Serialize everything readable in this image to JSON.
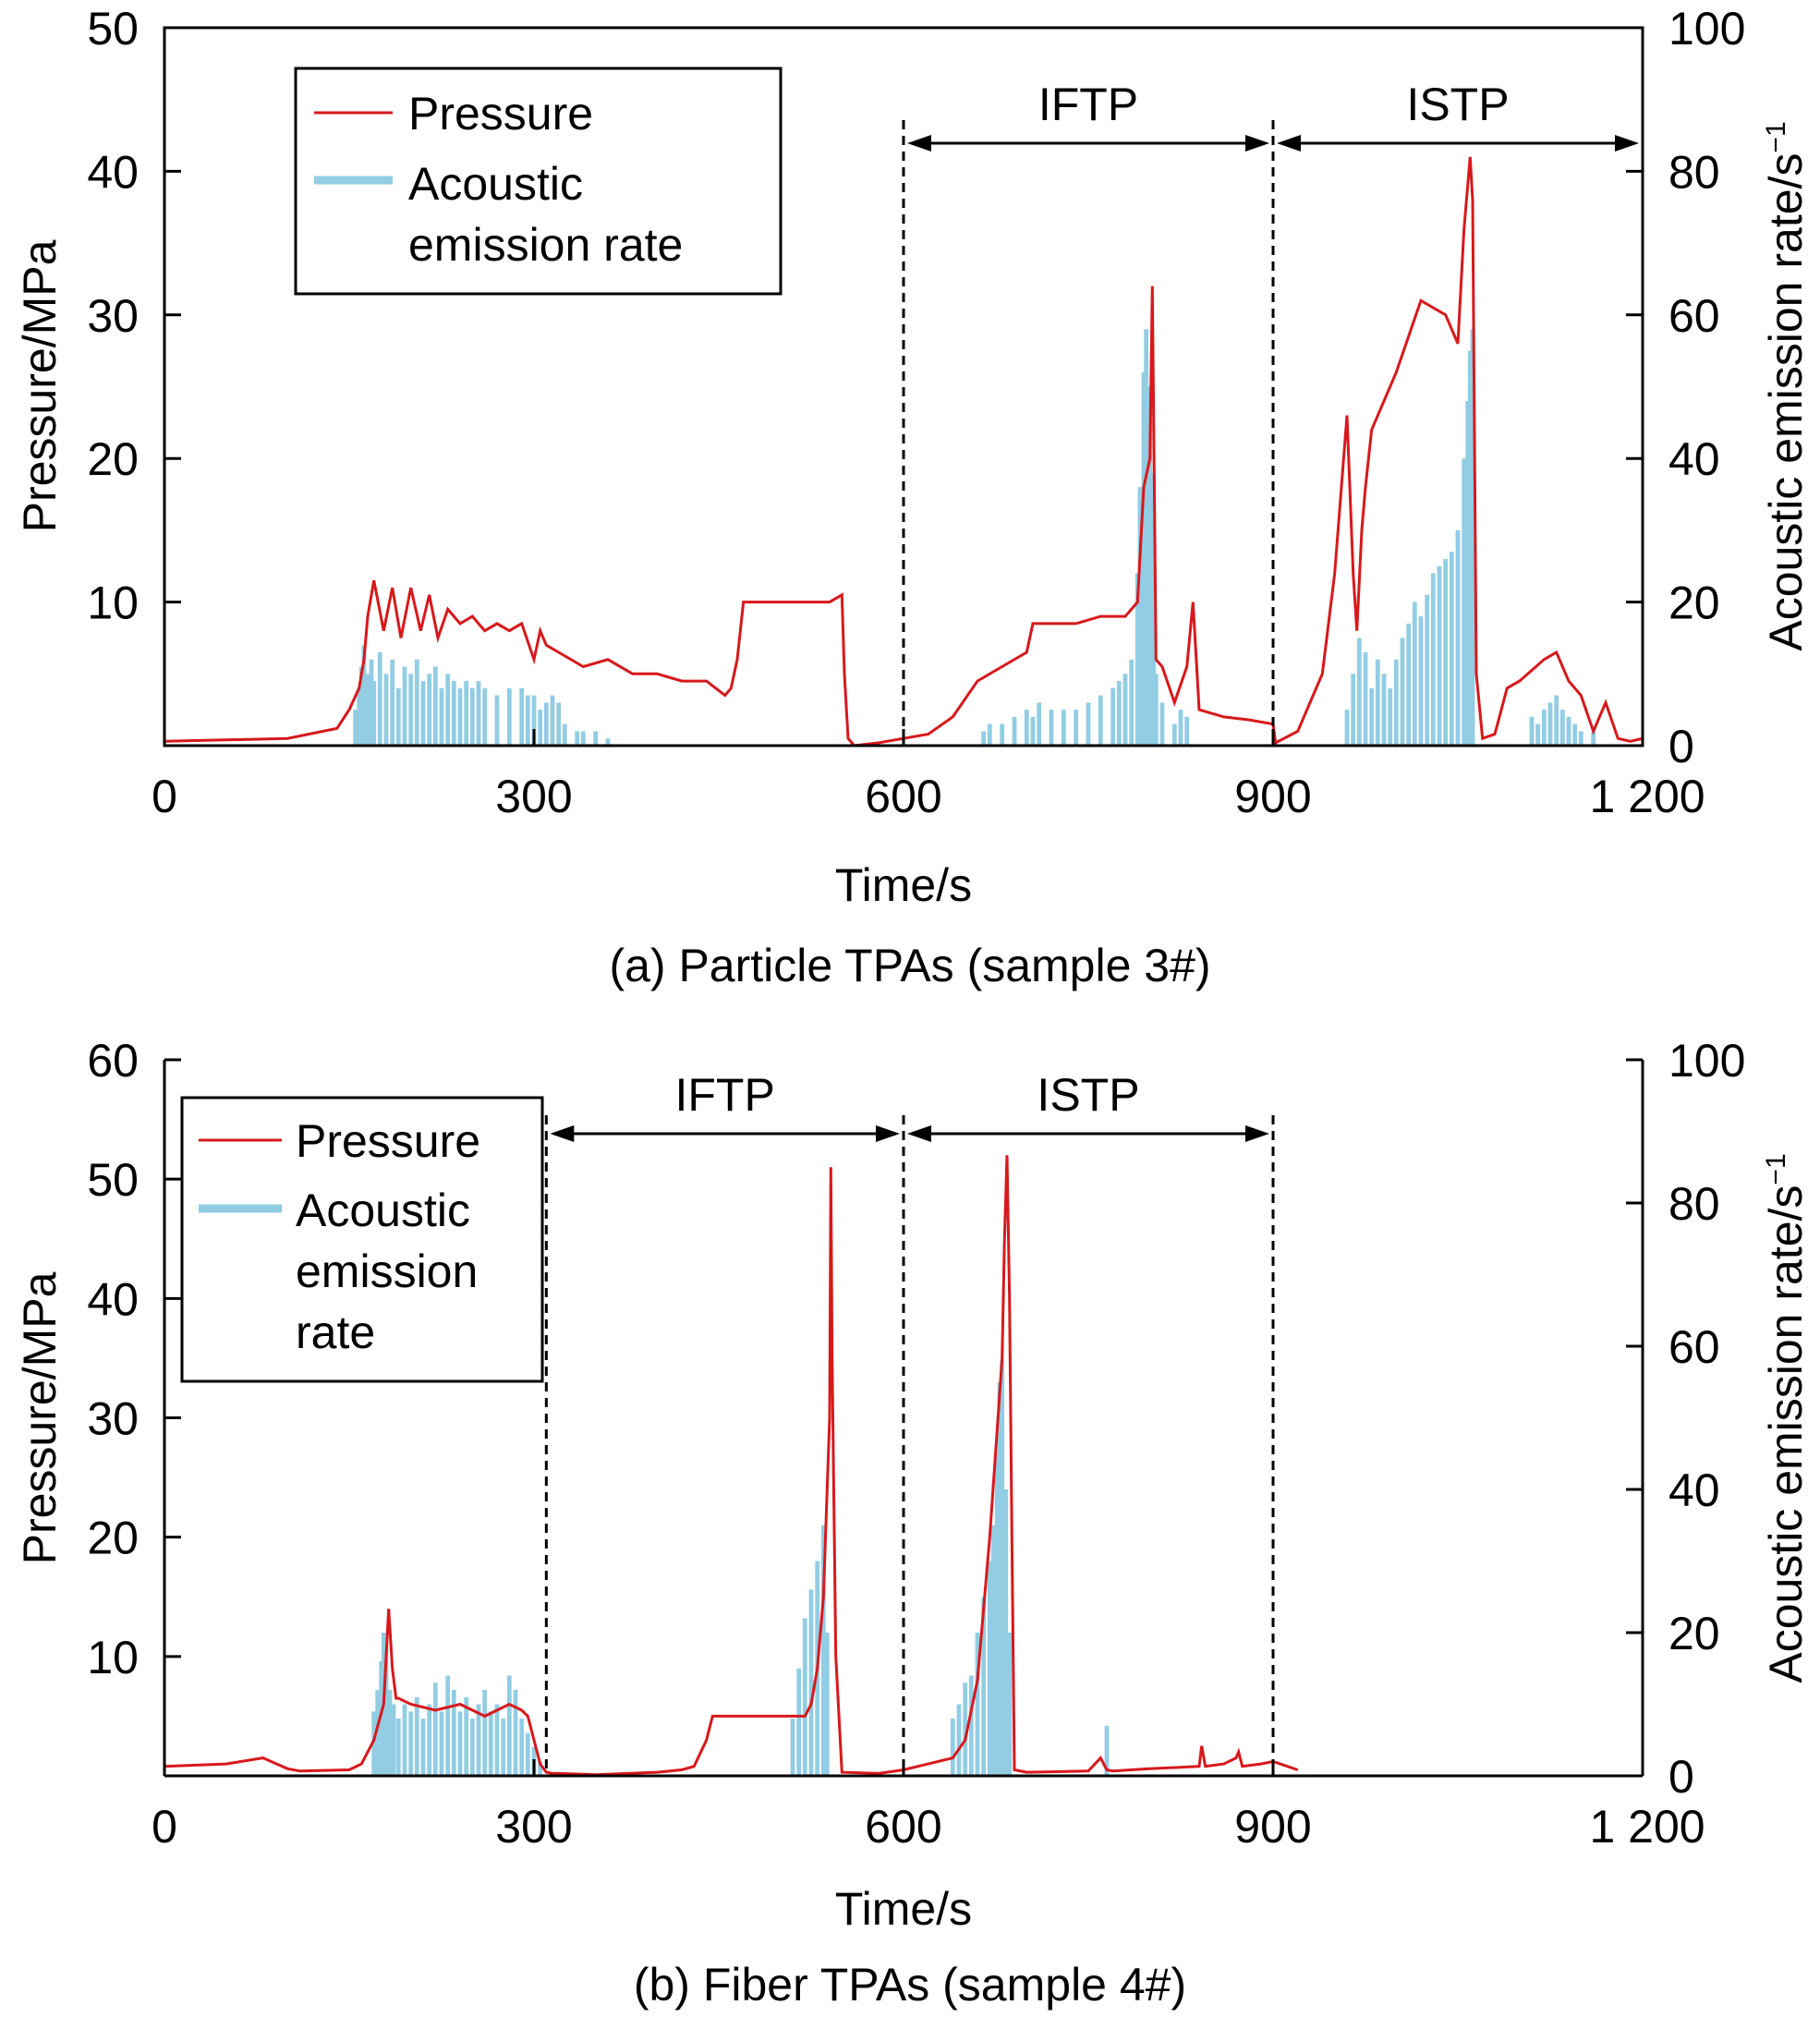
{
  "colors": {
    "pressure": "#d7191c",
    "acoustic": "#92cde3",
    "axis": "#000000"
  },
  "chart_data": [
    {
      "type": "line",
      "caption": "(a) Particle TPAs (sample 3#)",
      "xlabel": "Time/s",
      "ylabel_left": "Pressure/MPa",
      "ylabel_right": "Acoustic emission rate/s",
      "ylabel_right_sup": "−1",
      "xlim": [
        0,
        1200
      ],
      "ylim_left": [
        0,
        50
      ],
      "ylim_right": [
        0,
        100
      ],
      "xticks": [
        0,
        300,
        600,
        900,
        1200
      ],
      "xtick_labels": [
        "0",
        "300",
        "600",
        "900",
        "1 200"
      ],
      "yticks_left": [
        10,
        20,
        30,
        40,
        50
      ],
      "yticks_right": [
        0,
        20,
        40,
        60,
        80,
        100
      ],
      "legend": {
        "position": "top-left",
        "items": [
          "Pressure",
          "Acoustic emission rate"
        ],
        "lines": [
          [
            "Pressure"
          ],
          [
            "Acoustic",
            "emission rate"
          ]
        ]
      },
      "phases": [
        {
          "label": "IFTP",
          "start": 600,
          "end": 900
        },
        {
          "label": "ISTP",
          "start": 900,
          "end": 1200
        }
      ],
      "series": [
        {
          "name": "Pressure",
          "axis": "left",
          "x": [
            0,
            50,
            100,
            140,
            150,
            158,
            162,
            165,
            170,
            178,
            185,
            192,
            200,
            208,
            215,
            222,
            230,
            240,
            250,
            260,
            270,
            280,
            290,
            300,
            305,
            310,
            320,
            340,
            360,
            380,
            400,
            420,
            440,
            455,
            460,
            465,
            470,
            480,
            500,
            520,
            540,
            550,
            552,
            555,
            560,
            580,
            600,
            620,
            640,
            660,
            680,
            700,
            705,
            720,
            740,
            760,
            780,
            790,
            795,
            800,
            802,
            805,
            810,
            820,
            830,
            835,
            840,
            860,
            880,
            900,
            902,
            920,
            940,
            950,
            960,
            965,
            968,
            972,
            975,
            980,
            1000,
            1020,
            1040,
            1050,
            1055,
            1060,
            1062,
            1065,
            1070,
            1080,
            1090,
            1100,
            1120,
            1130,
            1140,
            1150,
            1160,
            1170,
            1180,
            1190,
            1200
          ],
          "y": [
            0.3,
            0.4,
            0.5,
            1.2,
            2.5,
            4,
            6,
            9,
            11.5,
            8,
            11,
            7.5,
            11,
            8,
            10.5,
            7.5,
            9.5,
            8.5,
            9,
            8,
            8.5,
            8,
            8.5,
            6,
            8,
            7,
            6.5,
            5.5,
            6,
            5,
            5,
            4.5,
            4.5,
            3.5,
            4,
            6,
            10,
            10,
            10,
            10,
            10,
            10.5,
            5,
            0.5,
            0,
            0.2,
            0.5,
            0.8,
            2,
            4.5,
            5.5,
            6.5,
            8.5,
            8.5,
            8.5,
            9,
            9,
            10,
            18,
            20,
            32,
            6,
            5.5,
            3,
            5.5,
            10,
            2.5,
            2,
            1.8,
            1.5,
            0.2,
            1,
            5,
            12,
            23,
            12,
            8,
            15,
            18,
            22,
            26,
            31,
            30,
            28,
            36,
            41,
            38,
            5,
            0.5,
            0.8,
            4,
            4.5,
            6,
            6.5,
            4.5,
            3.5,
            1,
            3,
            0.5,
            0.3,
            0.5
          ]
        },
        {
          "name": "Acoustic emission rate",
          "axis": "right",
          "bars": [
            [
              155,
              5
            ],
            [
              158,
              8
            ],
            [
              160,
              11
            ],
            [
              162,
              14
            ],
            [
              165,
              10
            ],
            [
              168,
              12
            ],
            [
              170,
              9
            ],
            [
              175,
              13
            ],
            [
              180,
              10
            ],
            [
              185,
              12
            ],
            [
              190,
              8
            ],
            [
              195,
              11
            ],
            [
              200,
              10
            ],
            [
              205,
              12
            ],
            [
              210,
              9
            ],
            [
              215,
              10
            ],
            [
              220,
              11
            ],
            [
              225,
              8
            ],
            [
              230,
              10
            ],
            [
              235,
              9
            ],
            [
              240,
              8
            ],
            [
              245,
              9
            ],
            [
              250,
              8
            ],
            [
              255,
              9
            ],
            [
              260,
              8
            ],
            [
              270,
              7
            ],
            [
              280,
              8
            ],
            [
              290,
              8
            ],
            [
              295,
              7
            ],
            [
              300,
              7
            ],
            [
              305,
              5
            ],
            [
              310,
              6
            ],
            [
              315,
              7
            ],
            [
              320,
              6
            ],
            [
              325,
              3
            ],
            [
              335,
              2
            ],
            [
              340,
              2
            ],
            [
              350,
              2
            ],
            [
              360,
              1
            ],
            [
              665,
              2
            ],
            [
              670,
              3
            ],
            [
              680,
              3
            ],
            [
              690,
              4
            ],
            [
              700,
              5
            ],
            [
              705,
              4
            ],
            [
              710,
              6
            ],
            [
              720,
              5
            ],
            [
              730,
              5
            ],
            [
              740,
              5
            ],
            [
              750,
              6
            ],
            [
              760,
              7
            ],
            [
              770,
              8
            ],
            [
              775,
              9
            ],
            [
              780,
              10
            ],
            [
              785,
              12
            ],
            [
              790,
              24
            ],
            [
              792,
              36
            ],
            [
              795,
              52
            ],
            [
              797,
              58
            ],
            [
              800,
              50
            ],
            [
              803,
              38
            ],
            [
              805,
              10
            ],
            [
              810,
              6
            ],
            [
              820,
              3
            ],
            [
              825,
              5
            ],
            [
              830,
              4
            ],
            [
              960,
              5
            ],
            [
              965,
              10
            ],
            [
              970,
              15
            ],
            [
              975,
              13
            ],
            [
              980,
              8
            ],
            [
              985,
              12
            ],
            [
              990,
              10
            ],
            [
              995,
              8
            ],
            [
              1000,
              12
            ],
            [
              1005,
              15
            ],
            [
              1010,
              17
            ],
            [
              1015,
              20
            ],
            [
              1020,
              18
            ],
            [
              1025,
              21
            ],
            [
              1030,
              24
            ],
            [
              1035,
              25
            ],
            [
              1040,
              26
            ],
            [
              1045,
              27
            ],
            [
              1050,
              30
            ],
            [
              1055,
              40
            ],
            [
              1058,
              48
            ],
            [
              1060,
              55
            ],
            [
              1062,
              58
            ],
            [
              1110,
              4
            ],
            [
              1115,
              3
            ],
            [
              1120,
              5
            ],
            [
              1125,
              6
            ],
            [
              1130,
              7
            ],
            [
              1135,
              5
            ],
            [
              1140,
              4
            ],
            [
              1145,
              3
            ],
            [
              1150,
              2
            ],
            [
              1160,
              2
            ]
          ]
        }
      ]
    },
    {
      "type": "line",
      "caption": "(b) Fiber TPAs (sample 4#)",
      "xlabel": "Time/s",
      "ylabel_left": "Pressure/MPa",
      "ylabel_right": "Acoustic emission rate/s",
      "ylabel_right_sup": "−1",
      "xlim": [
        0,
        1200
      ],
      "ylim_left": [
        0,
        60
      ],
      "ylim_right": [
        0,
        100
      ],
      "xticks": [
        0,
        300,
        600,
        900,
        1200
      ],
      "xtick_labels": [
        "0",
        "300",
        "600",
        "900",
        "1 200"
      ],
      "yticks_left": [
        10,
        20,
        30,
        40,
        50,
        60
      ],
      "yticks_right": [
        0,
        20,
        40,
        60,
        80,
        100
      ],
      "legend": {
        "position": "top-left",
        "items": [
          "Pressure",
          "Acoustic emission rate"
        ],
        "lines": [
          [
            "Pressure"
          ],
          [
            "Acoustic",
            "emission",
            "rate"
          ]
        ]
      },
      "phases": [
        {
          "label": "IFTP",
          "start": 310,
          "end": 600
        },
        {
          "label": "ISTP",
          "start": 600,
          "end": 900
        }
      ],
      "series": [
        {
          "name": "Pressure",
          "axis": "left",
          "x": [
            0,
            50,
            80,
            100,
            110,
            150,
            160,
            170,
            178,
            180,
            182,
            185,
            188,
            190,
            200,
            220,
            240,
            260,
            280,
            290,
            295,
            300,
            305,
            310,
            315,
            320,
            350,
            400,
            420,
            430,
            440,
            445,
            450,
            480,
            500,
            520,
            525,
            530,
            535,
            540,
            541,
            542,
            545,
            550,
            580,
            600,
            620,
            640,
            650,
            660,
            670,
            680,
            682,
            684,
            686,
            688,
            690,
            700,
            750,
            760,
            765,
            770,
            800,
            840,
            842,
            845,
            860,
            870,
            872,
            875,
            890,
            900,
            920
          ],
          "y": [
            0.8,
            1,
            1.5,
            0.6,
            0.4,
            0.5,
            1,
            3,
            6,
            10,
            14,
            9,
            6.5,
            6.5,
            6,
            5.5,
            6,
            5,
            6,
            5.5,
            5,
            3,
            1,
            0.3,
            0.2,
            0.2,
            0.1,
            0.3,
            0.5,
            0.8,
            3,
            5,
            5,
            5,
            5,
            5,
            6,
            9,
            15,
            30,
            51,
            35,
            10,
            0.3,
            0.2,
            0.5,
            1,
            1.5,
            3,
            8,
            20,
            35,
            45,
            52,
            40,
            20,
            0.5,
            0.3,
            0.4,
            1.5,
            0.5,
            0.4,
            0.6,
            0.8,
            2.5,
            0.8,
            1,
            1.5,
            2,
            0.8,
            1,
            1.2,
            0.5
          ]
        },
        {
          "name": "Acoustic emission rate",
          "axis": "right",
          "bars": [
            [
              170,
              9
            ],
            [
              173,
              12
            ],
            [
              176,
              16
            ],
            [
              178,
              20
            ],
            [
              180,
              18
            ],
            [
              183,
              12
            ],
            [
              186,
              10
            ],
            [
              190,
              8
            ],
            [
              195,
              10
            ],
            [
              200,
              9
            ],
            [
              205,
              11
            ],
            [
              210,
              8
            ],
            [
              215,
              10
            ],
            [
              220,
              13
            ],
            [
              225,
              9
            ],
            [
              230,
              14
            ],
            [
              235,
              12
            ],
            [
              240,
              9
            ],
            [
              245,
              11
            ],
            [
              250,
              8
            ],
            [
              255,
              10
            ],
            [
              260,
              12
            ],
            [
              265,
              9
            ],
            [
              270,
              10
            ],
            [
              275,
              8
            ],
            [
              280,
              14
            ],
            [
              285,
              12
            ],
            [
              290,
              8
            ],
            [
              295,
              6
            ],
            [
              300,
              4
            ],
            [
              305,
              2
            ],
            [
              510,
              8
            ],
            [
              515,
              15
            ],
            [
              520,
              22
            ],
            [
              525,
              26
            ],
            [
              530,
              30
            ],
            [
              535,
              35
            ],
            [
              538,
              20
            ],
            [
              640,
              8
            ],
            [
              645,
              10
            ],
            [
              650,
              13
            ],
            [
              655,
              14
            ],
            [
              660,
              20
            ],
            [
              665,
              25
            ],
            [
              670,
              30
            ],
            [
              673,
              35
            ],
            [
              676,
              45
            ],
            [
              678,
              55
            ],
            [
              680,
              58
            ],
            [
              683,
              40
            ],
            [
              686,
              20
            ],
            [
              765,
              7
            ]
          ]
        }
      ]
    }
  ]
}
